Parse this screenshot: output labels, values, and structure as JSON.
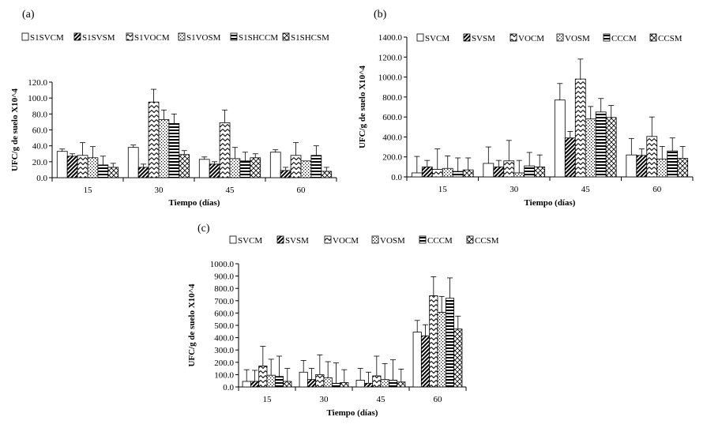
{
  "chart_data": [
    {
      "id": "a",
      "panel_label": "(a)",
      "type": "bar",
      "xlabel": "Tiempo (días)",
      "ylabel": "UFC/g de suelo X10^4",
      "ylim": [
        0,
        120
      ],
      "ytick_step": 20,
      "ytick_labels": [
        "0.0",
        "20.0",
        "40.0",
        "60.0",
        "80.0",
        "100.0",
        "120.0"
      ],
      "categories": [
        "15",
        "30",
        "45",
        "60"
      ],
      "legend_position": "top",
      "series": [
        {
          "name": "S1SVCM",
          "pattern": "empty",
          "values": [
            33,
            38,
            23,
            32
          ],
          "errors": [
            3,
            3,
            3,
            3
          ]
        },
        {
          "name": "S1SVSM",
          "pattern": "diagonal",
          "values": [
            27,
            13,
            17,
            9
          ],
          "errors": [
            3,
            4,
            3,
            4
          ]
        },
        {
          "name": "S1VOCM",
          "pattern": "zigzag",
          "values": [
            28,
            95,
            69,
            28
          ],
          "errors": [
            16,
            16,
            16,
            16
          ]
        },
        {
          "name": "S1VOSM",
          "pattern": "dots",
          "values": [
            25,
            73,
            24,
            21
          ],
          "errors": [
            14,
            12,
            14,
            0
          ]
        },
        {
          "name": "S1SHCCM",
          "pattern": "hlines",
          "values": [
            16,
            68,
            21,
            28
          ],
          "errors": [
            11,
            12,
            11,
            12
          ]
        },
        {
          "name": "S1SHCSM",
          "pattern": "cross",
          "values": [
            13,
            29,
            25,
            8
          ],
          "errors": [
            5,
            5,
            5,
            5
          ]
        }
      ]
    },
    {
      "id": "b",
      "panel_label": "(b)",
      "type": "bar",
      "xlabel": "Tiempo (días)",
      "ylabel": "UFC/g de suelo X10^4",
      "ylim": [
        0,
        1400
      ],
      "ytick_step": 200,
      "ytick_labels": [
        "0.0",
        "200.0",
        "400.0",
        "600.0",
        "800.0",
        "1000.0",
        "1200.0",
        "1400.0"
      ],
      "categories": [
        "15",
        "30",
        "45",
        "60"
      ],
      "legend_position": "top",
      "series": [
        {
          "name": "SVCM",
          "pattern": "empty",
          "values": [
            40,
            135,
            770,
            220
          ],
          "errors": [
            165,
            165,
            165,
            165
          ]
        },
        {
          "name": "SVSM",
          "pattern": "diagonal",
          "values": [
            100,
            100,
            390,
            215
          ],
          "errors": [
            65,
            65,
            65,
            65
          ]
        },
        {
          "name": "VOCM",
          "pattern": "zigzag",
          "values": [
            75,
            160,
            980,
            405
          ],
          "errors": [
            205,
            205,
            200,
            195
          ]
        },
        {
          "name": "VOSM",
          "pattern": "dots",
          "values": [
            85,
            40,
            580,
            180
          ],
          "errors": [
            125,
            125,
            125,
            125
          ]
        },
        {
          "name": "CCCM",
          "pattern": "hlines",
          "values": [
            55,
            110,
            650,
            260
          ],
          "errors": [
            135,
            135,
            135,
            130
          ]
        },
        {
          "name": "CCSM",
          "pattern": "cross",
          "values": [
            70,
            100,
            595,
            185
          ],
          "errors": [
            120,
            120,
            120,
            120
          ]
        }
      ]
    },
    {
      "id": "c",
      "panel_label": "(c)",
      "type": "bar",
      "xlabel": "Tiempo (días)",
      "ylabel": "UFC/g de suelo X10^4",
      "ylim": [
        0,
        1000
      ],
      "ytick_step": 100,
      "ytick_labels": [
        "0.0",
        "100.0",
        "200.0",
        "300.0",
        "400.0",
        "500.0",
        "600.0",
        "700.0",
        "800.0",
        "900.0",
        "1000.0"
      ],
      "categories": [
        "15",
        "30",
        "45",
        "60"
      ],
      "legend_position": "top",
      "series": [
        {
          "name": "SVCM",
          "pattern": "empty",
          "values": [
            45,
            120,
            55,
            445
          ],
          "errors": [
            95,
            95,
            95,
            95
          ]
        },
        {
          "name": "SVSM",
          "pattern": "diagonal",
          "values": [
            45,
            60,
            30,
            415
          ],
          "errors": [
            90,
            90,
            90,
            90
          ]
        },
        {
          "name": "VOCM",
          "pattern": "zigzag",
          "values": [
            170,
            100,
            90,
            740
          ],
          "errors": [
            160,
            160,
            160,
            155
          ]
        },
        {
          "name": "VOSM",
          "pattern": "dots",
          "values": [
            95,
            75,
            60,
            605
          ],
          "errors": [
            130,
            130,
            130,
            130
          ]
        },
        {
          "name": "CCCM",
          "pattern": "hlines",
          "values": [
            85,
            30,
            55,
            720
          ],
          "errors": [
            165,
            165,
            165,
            165
          ]
        },
        {
          "name": "CCSM",
          "pattern": "cross",
          "values": [
            45,
            35,
            40,
            470
          ],
          "errors": [
            105,
            105,
            105,
            105
          ]
        }
      ]
    }
  ]
}
